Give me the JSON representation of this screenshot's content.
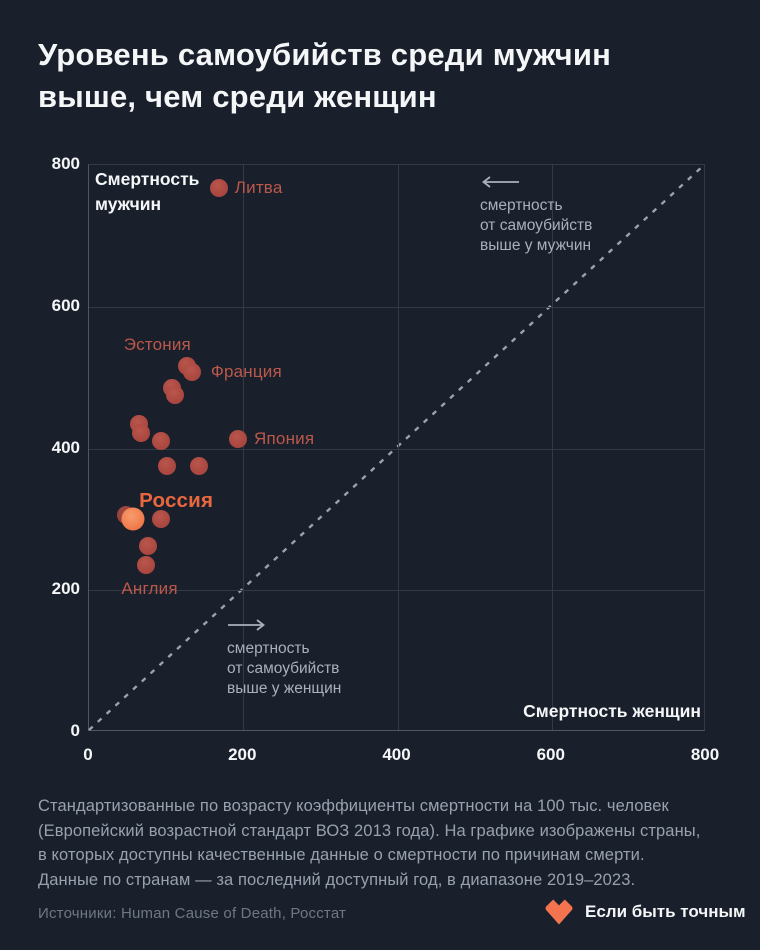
{
  "page": {
    "title": "Уровень самоубийств среди мужчин\nвыше, чем среди женщин",
    "footnote": "Стандартизованные по возрасту коэффициенты смертности на 100 тыс. человек\n(Европейский возрастной стандарт ВОЗ 2013 года). На графике изображены страны,\nв которых доступны качественные данные о смертности по причинам смерти.\nДанные по странам — за последний доступный год, в диапазоне 2019–2023.",
    "source": "Источники: Human Cause of Death, Росстат",
    "brand": "Если быть точным"
  },
  "colors": {
    "background": "#1a202b",
    "accent": "#f3744f",
    "dot": "#a8463f",
    "dot_highlight": "#ee7546",
    "country_label": "#bb574b",
    "country_label_highlight": "#e8673e",
    "diagonal": "#99a2ae",
    "annotation_text": "#a8b0bc"
  },
  "chart_data": {
    "type": "scatter",
    "title": "Уровень самоубийств среди мужчин выше, чем среди женщин",
    "xlabel": "Смертность женщин",
    "ylabel": "Смертность\nмужчин",
    "xlim": [
      0,
      800
    ],
    "ylim": [
      0,
      800
    ],
    "xticks": [
      0,
      200,
      400,
      600,
      800
    ],
    "yticks": [
      0,
      200,
      400,
      600,
      800
    ],
    "grid": true,
    "diagonal": {
      "style": "dashed",
      "from": [
        0,
        0
      ],
      "to": [
        800,
        800
      ]
    },
    "points": [
      {
        "x": 168,
        "y": 768,
        "country": "Литва"
      },
      {
        "x": 127,
        "y": 517,
        "country": "Эстония"
      },
      {
        "x": 134,
        "y": 508,
        "country": "Франция"
      },
      {
        "x": 108,
        "y": 485
      },
      {
        "x": 111,
        "y": 476
      },
      {
        "x": 65,
        "y": 434
      },
      {
        "x": 67,
        "y": 422
      },
      {
        "x": 94,
        "y": 411
      },
      {
        "x": 193,
        "y": 413,
        "country": "Япония"
      },
      {
        "x": 101,
        "y": 375
      },
      {
        "x": 142,
        "y": 375
      },
      {
        "x": 48,
        "y": 306,
        "shade": "dark"
      },
      {
        "x": 57,
        "y": 301,
        "country": "Россия",
        "highlight": true
      },
      {
        "x": 94,
        "y": 300
      },
      {
        "x": 77,
        "y": 262
      },
      {
        "x": 74,
        "y": 236,
        "country": "Англия"
      }
    ],
    "point_labels": [
      {
        "text": "Литва",
        "x": 189,
        "y": 768
      },
      {
        "text": "Эстония",
        "x": 45,
        "y": 546
      },
      {
        "text": "Франция",
        "x": 158,
        "y": 508
      },
      {
        "text": "Япония",
        "x": 214,
        "y": 413
      },
      {
        "text": "Россия",
        "x": 65,
        "y": 326,
        "highlight": true
      },
      {
        "text": "Англия",
        "x": 42,
        "y": 202
      }
    ],
    "annotations": [
      {
        "direction": "left",
        "text": "смертность\nот самоубийств\nвыше у мужчин",
        "x": 507,
        "y": 776
      },
      {
        "direction": "right",
        "text": "смертность\nот самоубийств\nвыше у женщин",
        "x": 179,
        "y": 151
      }
    ]
  }
}
